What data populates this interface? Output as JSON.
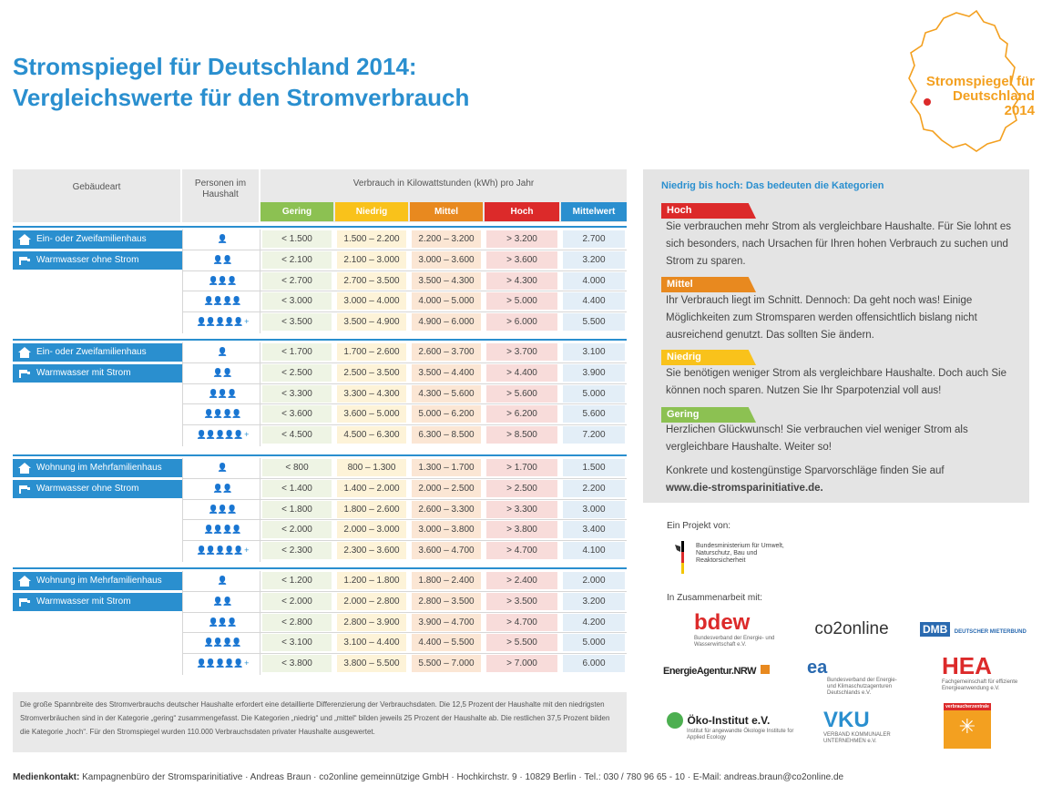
{
  "title": {
    "line1": "Stromspiegel für Deutschland 2014:",
    "line2": "Vergleichswerte für den Stromverbrauch"
  },
  "badge": {
    "line1": "Stromspiegel für",
    "line2": "Deutschland",
    "line3": "2014"
  },
  "table": {
    "header_building": "Gebäudeart",
    "header_persons_1": "Personen im",
    "header_persons_2": "Haushalt",
    "header_consumption": "Verbrauch in Kilowattstunden (kWh) pro Jahr",
    "categories": [
      "Gering",
      "Niedrig",
      "Mittel",
      "Hoch",
      "Mittelwert"
    ],
    "category_colors": [
      "#8cc152",
      "#f9c21b",
      "#e8891f",
      "#dc2a2a",
      "#2a8fcf"
    ],
    "person_icons": [
      "👤",
      "👤👤",
      "👤👤👤",
      "👤👤👤👤",
      "👤👤👤👤👤 +"
    ],
    "groups": [
      {
        "tag1": "Ein- oder Zweifamilienhaus",
        "tag2": "Warmwasser ohne Strom",
        "rows": [
          [
            "< 1.500",
            "1.500 – 2.200",
            "2.200 – 3.200",
            "> 3.200",
            "2.700"
          ],
          [
            "< 2.100",
            "2.100 – 3.000",
            "3.000 – 3.600",
            "> 3.600",
            "3.200"
          ],
          [
            "< 2.700",
            "2.700 – 3.500",
            "3.500 – 4.300",
            "> 4.300",
            "4.000"
          ],
          [
            "< 3.000",
            "3.000 – 4.000",
            "4.000 – 5.000",
            "> 5.000",
            "4.400"
          ],
          [
            "< 3.500",
            "3.500 – 4.900",
            "4.900 – 6.000",
            "> 6.000",
            "5.500"
          ]
        ]
      },
      {
        "tag1": "Ein- oder Zweifamilienhaus",
        "tag2": "Warmwasser mit Strom",
        "rows": [
          [
            "< 1.700",
            "1.700 – 2.600",
            "2.600 – 3.700",
            "> 3.700",
            "3.100"
          ],
          [
            "< 2.500",
            "2.500 – 3.500",
            "3.500 – 4.400",
            "> 4.400",
            "3.900"
          ],
          [
            "< 3.300",
            "3.300 – 4.300",
            "4.300 – 5.600",
            "> 5.600",
            "5.000"
          ],
          [
            "< 3.600",
            "3.600 – 5.000",
            "5.000 – 6.200",
            "> 6.200",
            "5.600"
          ],
          [
            "< 4.500",
            "4.500 – 6.300",
            "6.300 – 8.500",
            "> 8.500",
            "7.200"
          ]
        ]
      },
      {
        "tag1": "Wohnung im Mehrfamilienhaus",
        "tag2": "Warmwasser ohne Strom",
        "rows": [
          [
            "< 800",
            "800 – 1.300",
            "1.300 – 1.700",
            "> 1.700",
            "1.500"
          ],
          [
            "< 1.400",
            "1.400 – 2.000",
            "2.000 – 2.500",
            "> 2.500",
            "2.200"
          ],
          [
            "< 1.800",
            "1.800 – 2.600",
            "2.600 – 3.300",
            "> 3.300",
            "3.000"
          ],
          [
            "< 2.000",
            "2.000 – 3.000",
            "3.000 – 3.800",
            "> 3.800",
            "3.400"
          ],
          [
            "< 2.300",
            "2.300 – 3.600",
            "3.600 – 4.700",
            "> 4.700",
            "4.100"
          ]
        ]
      },
      {
        "tag1": "Wohnung im Mehrfamilienhaus",
        "tag2": "Warmwasser mit Strom",
        "rows": [
          [
            "< 1.200",
            "1.200 – 1.800",
            "1.800 – 2.400",
            "> 2.400",
            "2.000"
          ],
          [
            "< 2.000",
            "2.000 – 2.800",
            "2.800 – 3.500",
            "> 3.500",
            "3.200"
          ],
          [
            "< 2.800",
            "2.800 – 3.900",
            "3.900 – 4.700",
            "> 4.700",
            "4.200"
          ],
          [
            "< 3.100",
            "3.100 – 4.400",
            "4.400 – 5.500",
            "> 5.500",
            "5.000"
          ],
          [
            "< 3.800",
            "3.800 – 5.500",
            "5.500 – 7.000",
            "> 7.000",
            "6.000"
          ]
        ]
      }
    ]
  },
  "footnote": "Die große Spannbreite des Stromverbrauchs deutscher Haushalte erfordert eine detaillierte Differenzierung der Verbrauchsdaten. Die 12,5 Prozent der Haushalte mit den niedrigsten Stromverbräuchen sind in der Kategorie „gering“ zusammengefasst. Die Kategorien „niedrig“ und „mittel“ bilden jeweils 25 Prozent der Haushalte ab. Die restlichen 37,5 Prozent bilden die Kategorie „hoch“. Für den Stromspiegel wurden 110.000 Verbrauchsdaten privater Haushalte ausgewertet.",
  "panel": {
    "heading": "Niedrig bis hoch: Das bedeuten die Kategorien",
    "hoch_label": "Hoch",
    "hoch_text": "Sie verbrauchen mehr Strom als vergleichbare Haushalte. Für Sie lohnt es sich besonders, nach Ursachen für Ihren hohen Verbrauch zu suchen und Strom zu sparen.",
    "mittel_label": "Mittel",
    "mittel_text": "Ihr Verbrauch liegt im Schnitt. Dennoch: Da geht noch was! Einige Möglichkeiten zum Stromsparen werden offensichtlich bislang nicht ausreichend genutzt. Das sollten Sie ändern.",
    "niedrig_label": "Niedrig",
    "niedrig_text": "Sie benötigen weniger Strom als vergleichbare Haushalte. Doch auch Sie können noch sparen. Nutzen Sie Ihr Sparpotenzial voll aus!",
    "gering_label": "Gering",
    "gering_text": "Herzlichen Glückwunsch! Sie verbrauchen viel weniger Strom als vergleichbare Haushalte. Weiter so!",
    "tips_text": "Konkrete und kostengünstige Sparvorschläge finden Sie auf",
    "tips_url": "www.die-stromsparinitiative.de."
  },
  "project": {
    "label": "Ein Projekt von:",
    "ministry": "Bundesministerium für Umwelt, Naturschutz, Bau und Reaktorsicherheit",
    "cooperation": "In Zusammenarbeit mit:"
  },
  "partners": {
    "bdew": "bdew",
    "bdew_sub": "Bundesverband der Energie- und Wasserwirtschaft e.V.",
    "co2online": "co2online",
    "dmb": "DMB",
    "dmb_sub": "DEUTSCHER MIETERBUND",
    "energieagentur": "EnergieAgentur.NRW",
    "ea": "ea",
    "ea_sub": "Bundesverband der Energie- und Klimaschutzagenturen Deutschlands e.V.",
    "hea": "HEA",
    "hea_sub": "Fachgemeinschaft für effiziente Energieanwendung e.V.",
    "oeko": "Öko-Institut e.V.",
    "oeko_sub": "Institut für angewandte Ökologie Institute for Applied Ecology",
    "vku": "VKU",
    "vku_sub": "VERBAND KOMMUNALER UNTERNEHMEN e.V.",
    "vz": "verbraucherzentrale"
  },
  "contact": {
    "label": "Medienkontakt:",
    "text": "Kampagnenbüro der Stromsparinitiative · Andreas Braun · co2online gemeinnützige GmbH · Hochkirchstr. 9 · 10829 Berlin · Tel.: 030 / 780 96 65 - 10 · E-Mail: andreas.braun@co2online.de"
  }
}
